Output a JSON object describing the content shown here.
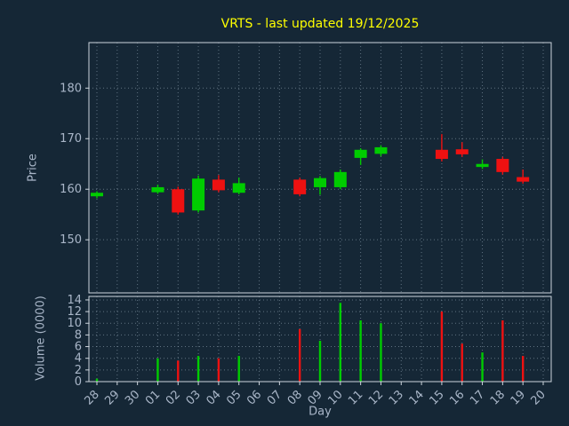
{
  "colors": {
    "background": "#152736",
    "title": "#ffff00",
    "tick_text": "#a9b6c8",
    "axis_label": "#a9b6c8",
    "spine": "#cdd5dd",
    "grid": "#9fb0c0",
    "up": "#00cc00",
    "down": "#ee1111"
  },
  "chart_data": {
    "type": "candlestick_with_volume",
    "title": "VRTS - last updated 19/12/2025",
    "xlabel": "Day",
    "price_ylabel": "Price",
    "volume_ylabel": "Volume (0000)",
    "x_ticklabels": [
      "28",
      "29",
      "30",
      "01",
      "02",
      "03",
      "04",
      "05",
      "06",
      "07",
      "08",
      "09",
      "10",
      "11",
      "12",
      "13",
      "14",
      "15",
      "16",
      "17",
      "18",
      "19",
      "20"
    ],
    "price_ticks": [
      150,
      160,
      170,
      180
    ],
    "price_ylim": [
      139.5,
      189
    ],
    "volume_ticks": [
      0,
      2,
      4,
      6,
      8,
      10,
      12,
      14
    ],
    "volume_ylim": [
      0,
      14.6
    ],
    "grid": true,
    "legend": "none",
    "candles": [
      {
        "day": "28",
        "open": 158.6,
        "high": 159.6,
        "low": 158.2,
        "close": 159.3,
        "volume": 0.5
      },
      {
        "day": "01",
        "open": 159.4,
        "high": 160.9,
        "low": 159.1,
        "close": 160.4,
        "volume": 4.0
      },
      {
        "day": "02",
        "open": 160.0,
        "high": 160.5,
        "low": 155.0,
        "close": 155.4,
        "volume": 3.6
      },
      {
        "day": "03",
        "open": 155.8,
        "high": 162.7,
        "low": 155.4,
        "close": 162.1,
        "volume": 4.4
      },
      {
        "day": "04",
        "open": 161.9,
        "high": 162.8,
        "low": 159.4,
        "close": 159.8,
        "volume": 4.0
      },
      {
        "day": "05",
        "open": 159.3,
        "high": 162.3,
        "low": 159.0,
        "close": 161.2,
        "volume": 4.4
      },
      {
        "day": "08",
        "open": 161.9,
        "high": 162.3,
        "low": 158.6,
        "close": 159.0,
        "volume": 9.0
      },
      {
        "day": "09",
        "open": 160.4,
        "high": 162.6,
        "low": 158.9,
        "close": 162.2,
        "volume": 7.0
      },
      {
        "day": "10",
        "open": 160.4,
        "high": 163.9,
        "low": 160.0,
        "close": 163.4,
        "volume": 13.5
      },
      {
        "day": "11",
        "open": 166.2,
        "high": 168.1,
        "low": 164.8,
        "close": 167.8,
        "volume": 10.5
      },
      {
        "day": "12",
        "open": 167.0,
        "high": 168.7,
        "low": 166.5,
        "close": 168.3,
        "volume": 10.0
      },
      {
        "day": "15",
        "open": 167.8,
        "high": 170.9,
        "low": 165.5,
        "close": 166.0,
        "volume": 12.0
      },
      {
        "day": "16",
        "open": 167.9,
        "high": 169.3,
        "low": 166.4,
        "close": 166.9,
        "volume": 6.5
      },
      {
        "day": "17",
        "open": 164.4,
        "high": 165.9,
        "low": 164.0,
        "close": 165.0,
        "volume": 5.0
      },
      {
        "day": "18",
        "open": 166.0,
        "high": 166.4,
        "low": 162.9,
        "close": 163.4,
        "volume": 10.5
      },
      {
        "day": "19",
        "open": 162.4,
        "high": 163.9,
        "low": 161.1,
        "close": 161.5,
        "volume": 4.4
      }
    ]
  }
}
